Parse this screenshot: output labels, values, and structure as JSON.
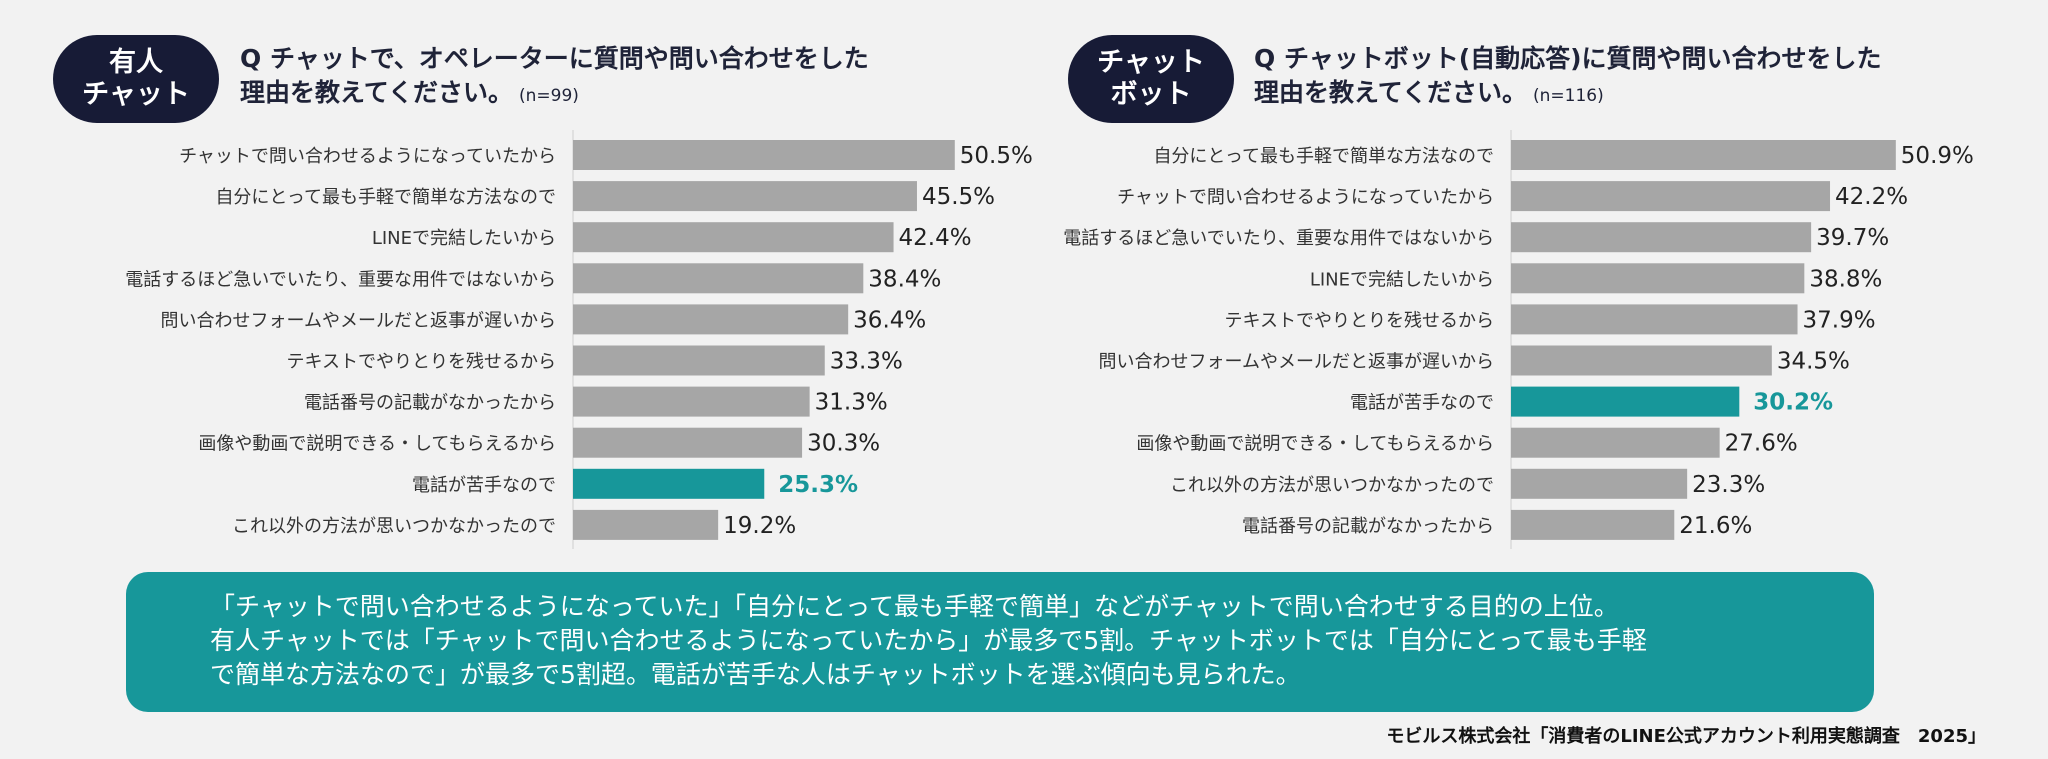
{
  "panels": [
    {
      "badge_line1": "有人",
      "badge_line2": "チャット",
      "question_line1": "Q チャットで、オペレーターに質問や問い合わせをした",
      "question_line2": "理由を教えてください。",
      "n_label": "(n=99)"
    },
    {
      "badge_line1": "チャット",
      "badge_line2": "ボット",
      "question_line1": "Q チャットボット(自動応答)に質問や問い合わせをした",
      "question_line2": "理由を教えてください。",
      "n_label": "(n=116)"
    }
  ],
  "chart_data": [
    {
      "type": "bar",
      "orientation": "horizontal",
      "categories": [
        "チャットで問い合わせるようになっていたから",
        "自分にとって最も手軽で簡単な方法なので",
        "LINEで完結したいから",
        "電話するほど急いでいたり、重要な用件ではないから",
        "問い合わせフォームやメールだと返事が遅いから",
        "テキストでやりとりを残せるから",
        "電話番号の記載がなかったから",
        "画像や動画で説明できる・してもらえるから",
        "電話が苦手なので",
        "これ以外の方法が思いつかなかったので"
      ],
      "values": [
        50.5,
        45.5,
        42.4,
        38.4,
        36.4,
        33.3,
        31.3,
        30.3,
        25.3,
        19.2
      ],
      "value_labels": [
        "50.5%",
        "45.5%",
        "42.4%",
        "38.4%",
        "36.4%",
        "33.3%",
        "31.3%",
        "30.3%",
        "25.3%",
        "19.2%"
      ],
      "highlight_index": 8,
      "colors": {
        "bar": "#a6a6a6",
        "highlight": "#17979a"
      }
    },
    {
      "type": "bar",
      "orientation": "horizontal",
      "categories": [
        "自分にとって最も手軽で簡単な方法なので",
        "チャットで問い合わせるようになっていたから",
        "電話するほど急いでいたり、重要な用件ではないから",
        "LINEで完結したいから",
        "テキストでやりとりを残せるから",
        "問い合わせフォームやメールだと返事が遅いから",
        "電話が苦手なので",
        "画像や動画で説明できる・してもらえるから",
        "これ以外の方法が思いつかなかったので",
        "電話番号の記載がなかったから"
      ],
      "values": [
        50.9,
        42.2,
        39.7,
        38.8,
        37.9,
        34.5,
        30.2,
        27.6,
        23.3,
        21.6
      ],
      "value_labels": [
        "50.9%",
        "42.2%",
        "39.7%",
        "38.8%",
        "37.9%",
        "34.5%",
        "30.2%",
        "27.6%",
        "23.3%",
        "21.6%"
      ],
      "highlight_index": 6,
      "colors": {
        "bar": "#a6a6a6",
        "highlight": "#17979a"
      }
    }
  ],
  "summary": {
    "line1": "「チャットで問い合わせるようになっていた」「自分にとって最も手軽で簡単」などがチャットで問い合わせする目的の上位。",
    "line2": "有人チャットでは「チャットで問い合わせるようになっていたから」が最多で5割。チャットボットでは「自分にとって最も手軽",
    "line3": "で簡単な方法なので」が最多で5割超。電話が苦手な人はチャットボットを選ぶ傾向も見られた。"
  },
  "source": "モビルス株式会社「消費者のLINE公式アカウント利用実態調査　2025」"
}
